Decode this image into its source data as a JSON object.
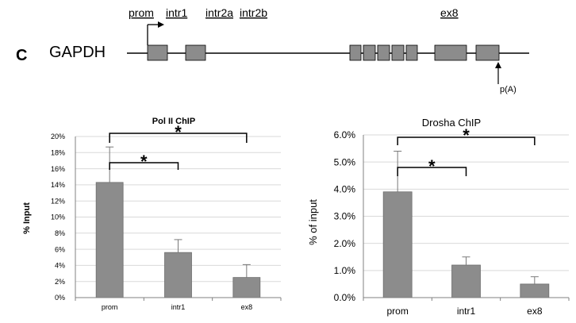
{
  "panel_label": "C",
  "gene_name": "GAPDH",
  "region_labels": [
    "prom",
    "intr1",
    "intr2a",
    "intr2b",
    "ex8"
  ],
  "polya_label": "p(A)",
  "colors": {
    "bar": "#8c8c8c",
    "grid": "#d9d9d9",
    "axis": "#808080",
    "text": "#000000"
  },
  "chart_data": [
    {
      "type": "bar",
      "title": "Pol II ChIP",
      "xlabel": "",
      "ylabel": "% Input",
      "categories": [
        "prom",
        "intr1",
        "ex8"
      ],
      "values": [
        14.3,
        5.6,
        2.5
      ],
      "errors": [
        4.4,
        1.6,
        1.6
      ],
      "ylim": [
        0,
        20
      ],
      "ytick_step": 2,
      "ytick_labels": [
        "0%",
        "2%",
        "4%",
        "6%",
        "8%",
        "10%",
        "12%",
        "14%",
        "16%",
        "18%",
        "20%"
      ],
      "significance": [
        {
          "from": "prom",
          "to": "intr1",
          "label": "*"
        },
        {
          "from": "prom",
          "to": "ex8",
          "label": "*"
        }
      ],
      "grid": true
    },
    {
      "type": "bar",
      "title": "Drosha ChIP",
      "xlabel": "",
      "ylabel": "% of input",
      "categories": [
        "prom",
        "intr1",
        "ex8"
      ],
      "values": [
        3.9,
        1.2,
        0.5
      ],
      "errors": [
        1.5,
        0.3,
        0.27
      ],
      "ylim": [
        0,
        6
      ],
      "ytick_step": 1,
      "ytick_labels": [
        "0.0%",
        "1.0%",
        "2.0%",
        "3.0%",
        "4.0%",
        "5.0%",
        "6.0%"
      ],
      "significance": [
        {
          "from": "prom",
          "to": "intr1",
          "label": "*"
        },
        {
          "from": "prom",
          "to": "ex8",
          "label": "*"
        }
      ],
      "grid": true
    }
  ]
}
